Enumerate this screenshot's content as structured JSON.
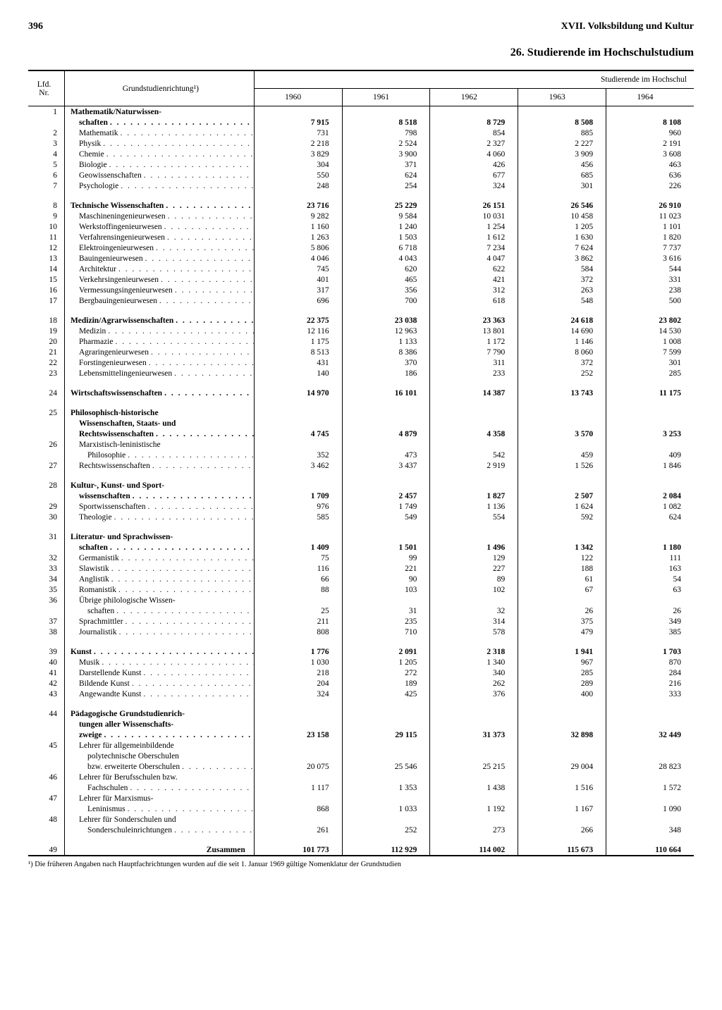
{
  "page_number": "396",
  "chapter_heading": "XVII. Volksbildung und Kultur",
  "section_title": "26. Studierende im Hochschulstudium",
  "col_headers": {
    "nr": "Lfd.\nNr.",
    "label": "Grundstudienrichtung¹)",
    "super_header": "Studierende im Hochschul",
    "years": [
      "1960",
      "1961",
      "1962",
      "1963",
      "1964"
    ]
  },
  "rows": [
    {
      "nr": "1",
      "label": "Mathematik/Naturwissen-",
      "sub": "schaften",
      "bold": true,
      "dots": true,
      "v": [
        "7 915",
        "8 518",
        "8 729",
        "8 508",
        "8 108"
      ]
    },
    {
      "nr": "2",
      "label": "Mathematik",
      "indent": 1,
      "dots": true,
      "v": [
        "731",
        "798",
        "854",
        "885",
        "960"
      ]
    },
    {
      "nr": "3",
      "label": "Physik",
      "indent": 1,
      "dots": true,
      "v": [
        "2 218",
        "2 524",
        "2 327",
        "2 227",
        "2 191"
      ]
    },
    {
      "nr": "4",
      "label": "Chemie",
      "indent": 1,
      "dots": true,
      "v": [
        "3 829",
        "3 900",
        "4 060",
        "3 909",
        "3 608"
      ]
    },
    {
      "nr": "5",
      "label": "Biologie",
      "indent": 1,
      "dots": true,
      "v": [
        "304",
        "371",
        "426",
        "456",
        "463"
      ]
    },
    {
      "nr": "6",
      "label": "Geowissenschaften",
      "indent": 1,
      "dots": true,
      "v": [
        "550",
        "624",
        "677",
        "685",
        "636"
      ]
    },
    {
      "nr": "7",
      "label": "Psychologie",
      "indent": 1,
      "dots": true,
      "v": [
        "248",
        "254",
        "324",
        "301",
        "226"
      ]
    },
    {
      "spacer": true
    },
    {
      "nr": "8",
      "label": "Technische Wissenschaften",
      "bold": true,
      "dots": true,
      "v": [
        "23 716",
        "25 229",
        "26 151",
        "26 546",
        "26 910"
      ]
    },
    {
      "nr": "9",
      "label": "Maschineningenieurwesen",
      "indent": 1,
      "dots": true,
      "v": [
        "9 282",
        "9 584",
        "10 031",
        "10 458",
        "11 023"
      ]
    },
    {
      "nr": "10",
      "label": "Werkstoffingenieurwesen",
      "indent": 1,
      "dots": true,
      "v": [
        "1 160",
        "1 240",
        "1 254",
        "1 205",
        "1 101"
      ]
    },
    {
      "nr": "11",
      "label": "Verfahrensingenieurwesen",
      "indent": 1,
      "dots": true,
      "v": [
        "1 263",
        "1 503",
        "1 612",
        "1 630",
        "1 820"
      ]
    },
    {
      "nr": "12",
      "label": "Elektroingenieurwesen",
      "indent": 1,
      "dots": true,
      "v": [
        "5 806",
        "6 718",
        "7 234",
        "7 624",
        "7 737"
      ]
    },
    {
      "nr": "13",
      "label": "Bauingenieurwesen",
      "indent": 1,
      "dots": true,
      "v": [
        "4 046",
        "4 043",
        "4 047",
        "3 862",
        "3 616"
      ]
    },
    {
      "nr": "14",
      "label": "Architektur",
      "indent": 1,
      "dots": true,
      "v": [
        "745",
        "620",
        "622",
        "584",
        "544"
      ]
    },
    {
      "nr": "15",
      "label": "Verkehrsingenieurwesen",
      "indent": 1,
      "dots": true,
      "v": [
        "401",
        "465",
        "421",
        "372",
        "331"
      ]
    },
    {
      "nr": "16",
      "label": "Vermessungsingenieurwesen",
      "indent": 1,
      "dots": true,
      "v": [
        "317",
        "356",
        "312",
        "263",
        "238"
      ]
    },
    {
      "nr": "17",
      "label": "Bergbauingenieurwesen",
      "indent": 1,
      "dots": true,
      "v": [
        "696",
        "700",
        "618",
        "548",
        "500"
      ]
    },
    {
      "spacer": true
    },
    {
      "nr": "18",
      "label": "Medizin/Agrarwissenschaften",
      "bold": true,
      "dots": true,
      "v": [
        "22 375",
        "23 038",
        "23 363",
        "24 618",
        "23 802"
      ]
    },
    {
      "nr": "19",
      "label": "Medizin",
      "indent": 1,
      "dots": true,
      "v": [
        "12 116",
        "12 963",
        "13 801",
        "14 690",
        "14 530"
      ]
    },
    {
      "nr": "20",
      "label": "Pharmazie",
      "indent": 1,
      "dots": true,
      "v": [
        "1 175",
        "1 133",
        "1 172",
        "1 146",
        "1 008"
      ]
    },
    {
      "nr": "21",
      "label": "Agraringenieurwesen",
      "indent": 1,
      "dots": true,
      "v": [
        "8 513",
        "8 386",
        "7 790",
        "8 060",
        "7 599"
      ]
    },
    {
      "nr": "22",
      "label": "Forstingenieurwesen",
      "indent": 1,
      "dots": true,
      "v": [
        "431",
        "370",
        "311",
        "372",
        "301"
      ]
    },
    {
      "nr": "23",
      "label": "Lebensmittelingenieurwesen",
      "indent": 1,
      "dots": true,
      "v": [
        "140",
        "186",
        "233",
        "252",
        "285"
      ]
    },
    {
      "spacer": true
    },
    {
      "nr": "24",
      "label": "Wirtschaftswissenschaften",
      "bold": true,
      "dots": true,
      "v": [
        "14 970",
        "16 101",
        "14 387",
        "13 743",
        "11 175"
      ]
    },
    {
      "spacer": true
    },
    {
      "nr": "25",
      "label": "Philosophisch-historische",
      "sub": "Wissenschaften, Staats- und",
      "sub2": "Rechtswissenschaften",
      "bold": true,
      "dots": true,
      "v": [
        "4 745",
        "4 879",
        "4 358",
        "3 570",
        "3 253"
      ]
    },
    {
      "nr": "26",
      "label": "Marxistisch-leninistische",
      "sub": "Philosophie",
      "indent": 1,
      "dots": true,
      "v": [
        "352",
        "473",
        "542",
        "459",
        "409"
      ]
    },
    {
      "nr": "27",
      "label": "Rechtswissenschaften",
      "indent": 1,
      "dots": true,
      "v": [
        "3 462",
        "3 437",
        "2 919",
        "1 526",
        "1 846"
      ]
    },
    {
      "spacer": true
    },
    {
      "nr": "28",
      "label": "Kultur-, Kunst- und Sport-",
      "sub": "wissenschaften",
      "bold": true,
      "dots": true,
      "v": [
        "1 709",
        "2 457",
        "1 827",
        "2 507",
        "2 084"
      ]
    },
    {
      "nr": "29",
      "label": "Sportwissenschaften",
      "indent": 1,
      "dots": true,
      "v": [
        "976",
        "1 749",
        "1 136",
        "1 624",
        "1 082"
      ]
    },
    {
      "nr": "30",
      "label": "Theologie",
      "indent": 1,
      "dots": true,
      "v": [
        "585",
        "549",
        "554",
        "592",
        "624"
      ]
    },
    {
      "spacer": true
    },
    {
      "nr": "31",
      "label": "Literatur- und Sprachwissen-",
      "sub": "schaften",
      "bold": true,
      "dots": true,
      "v": [
        "1 409",
        "1 501",
        "1 496",
        "1 342",
        "1 180"
      ]
    },
    {
      "nr": "32",
      "label": "Germanistik",
      "indent": 1,
      "dots": true,
      "v": [
        "75",
        "99",
        "129",
        "122",
        "111"
      ]
    },
    {
      "nr": "33",
      "label": "Slawistik",
      "indent": 1,
      "dots": true,
      "v": [
        "116",
        "221",
        "227",
        "188",
        "163"
      ]
    },
    {
      "nr": "34",
      "label": "Anglistik",
      "indent": 1,
      "dots": true,
      "v": [
        "66",
        "90",
        "89",
        "61",
        "54"
      ]
    },
    {
      "nr": "35",
      "label": "Romanistik",
      "indent": 1,
      "dots": true,
      "v": [
        "88",
        "103",
        "102",
        "67",
        "63"
      ]
    },
    {
      "nr": "36",
      "label": "Übrige philologische Wissen-",
      "sub": "schaften",
      "indent": 1,
      "dots": true,
      "v": [
        "25",
        "31",
        "32",
        "26",
        "26"
      ]
    },
    {
      "nr": "37",
      "label": "Sprachmittler",
      "indent": 1,
      "dots": true,
      "v": [
        "211",
        "235",
        "314",
        "375",
        "349"
      ]
    },
    {
      "nr": "38",
      "label": "Journalistik",
      "indent": 1,
      "dots": true,
      "v": [
        "808",
        "710",
        "578",
        "479",
        "385"
      ]
    },
    {
      "spacer": true
    },
    {
      "nr": "39",
      "label": "Kunst",
      "bold": true,
      "dots": true,
      "v": [
        "1 776",
        "2 091",
        "2 318",
        "1 941",
        "1 703"
      ]
    },
    {
      "nr": "40",
      "label": "Musik",
      "indent": 1,
      "dots": true,
      "v": [
        "1 030",
        "1 205",
        "1 340",
        "967",
        "870"
      ]
    },
    {
      "nr": "41",
      "label": "Darstellende Kunst",
      "indent": 1,
      "dots": true,
      "v": [
        "218",
        "272",
        "340",
        "285",
        "284"
      ]
    },
    {
      "nr": "42",
      "label": "Bildende Kunst",
      "indent": 1,
      "dots": true,
      "v": [
        "204",
        "189",
        "262",
        "289",
        "216"
      ]
    },
    {
      "nr": "43",
      "label": "Angewandte Kunst",
      "indent": 1,
      "dots": true,
      "v": [
        "324",
        "425",
        "376",
        "400",
        "333"
      ]
    },
    {
      "spacer": true
    },
    {
      "nr": "44",
      "label": "Pädagogische Grundstudienrich-",
      "sub": "tungen aller Wissenschafts-",
      "sub2": "zweige",
      "bold": true,
      "dots": true,
      "v": [
        "23 158",
        "29 115",
        "31 373",
        "32 898",
        "32 449"
      ]
    },
    {
      "nr": "45",
      "label": "Lehrer für allgemeinbildende",
      "sub": "polytechnische Oberschulen",
      "sub2": "bzw. erweiterte Oberschulen",
      "indent": 1,
      "dots": true,
      "v": [
        "20 075",
        "25 546",
        "25 215",
        "29 004",
        "28 823"
      ]
    },
    {
      "nr": "46",
      "label": "Lehrer für Berufsschulen bzw.",
      "sub": "Fachschulen",
      "indent": 1,
      "dots": true,
      "v": [
        "1 117",
        "1 353",
        "1 438",
        "1 516",
        "1 572"
      ]
    },
    {
      "nr": "47",
      "label": "Lehrer für Marxismus-",
      "sub": "Leninismus",
      "indent": 1,
      "dots": true,
      "v": [
        "868",
        "1 033",
        "1 192",
        "1 167",
        "1 090"
      ]
    },
    {
      "nr": "48",
      "label": "Lehrer für Sonderschulen und",
      "sub": "Sonderschuleinrichtungen",
      "indent": 1,
      "dots": true,
      "v": [
        "261",
        "252",
        "273",
        "266",
        "348"
      ]
    },
    {
      "spacer": true
    },
    {
      "nr": "49",
      "label": "Zusammen",
      "bold": true,
      "align_right": true,
      "v": [
        "101 773",
        "112 929",
        "114 002",
        "115 673",
        "110 664"
      ]
    }
  ],
  "footnote": "¹) Die früheren Angaben nach Hauptfachrichtungen wurden auf die seit 1. Januar 1969 gültige Nomenklatur der Grundstudien"
}
